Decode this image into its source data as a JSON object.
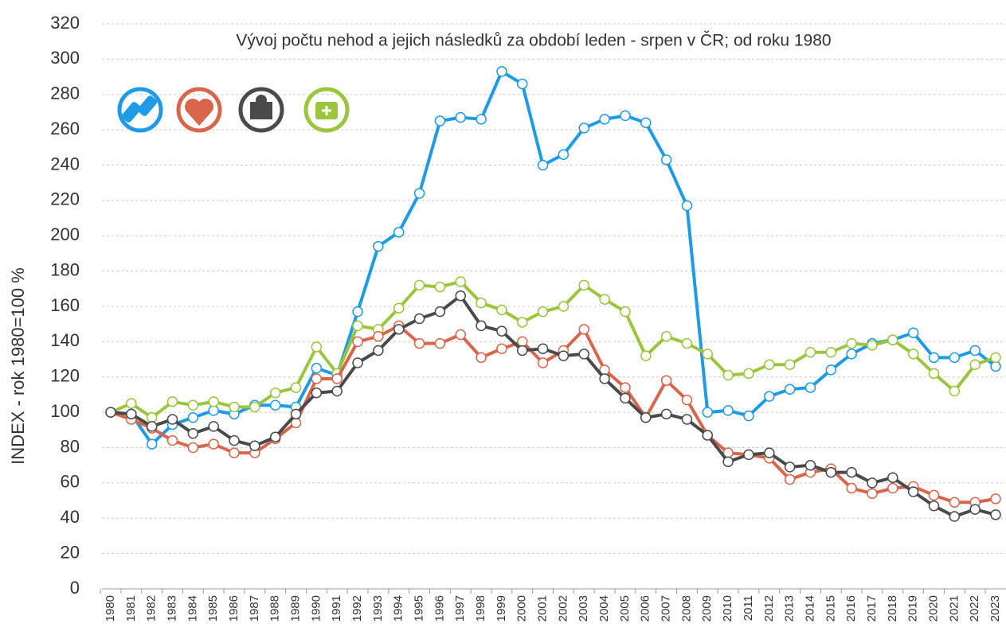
{
  "chart_data": {
    "type": "line",
    "title": "Vývoj počtu nehod a jejich následků za období leden - srpen v ČR; od roku 1980",
    "y_label": "INDEX - rok 1980=100 %",
    "categories": [
      "1980",
      "1981",
      "1982",
      "1983",
      "1984",
      "1985",
      "1986",
      "1987",
      "1988",
      "1989",
      "1990",
      "1991",
      "1992",
      "1993",
      "1994",
      "1995",
      "1996",
      "1997",
      "1998",
      "1999",
      "2000",
      "2001",
      "2002",
      "2003",
      "2004",
      "2005",
      "2006",
      "2007",
      "2008",
      "2009",
      "2010",
      "2011",
      "2012",
      "2013",
      "2014",
      "2015",
      "2016",
      "2017",
      "2018",
      "2019",
      "2020",
      "2021",
      "2022",
      "2023"
    ],
    "series": [
      {
        "color": "#1e9be6",
        "values": [
          100,
          99,
          82,
          93,
          97,
          101,
          99,
          104,
          104,
          103,
          125,
          121,
          157,
          194,
          202,
          224,
          265,
          267,
          266,
          293,
          286,
          240,
          246,
          261,
          266,
          268,
          264,
          243,
          217,
          100,
          101,
          98,
          109,
          113,
          114,
          124,
          133,
          139,
          141,
          145,
          131,
          131,
          135,
          126
        ]
      },
      {
        "color": "#9bc53d",
        "values": [
          100,
          105,
          97,
          106,
          104,
          106,
          103,
          103,
          111,
          114,
          137,
          122,
          149,
          147,
          159,
          172,
          171,
          174,
          162,
          158,
          151,
          157,
          160,
          172,
          164,
          157,
          132,
          143,
          139,
          133,
          121,
          122,
          127,
          127,
          134,
          134,
          139,
          138,
          141,
          133,
          122,
          112,
          127,
          131
        ]
      },
      {
        "color": "#d9654b",
        "values": [
          100,
          96,
          91,
          84,
          80,
          82,
          77,
          77,
          85,
          94,
          119,
          119,
          140,
          143,
          149,
          139,
          139,
          144,
          131,
          136,
          140,
          128,
          135,
          147,
          124,
          114,
          97,
          118,
          107,
          87,
          77,
          76,
          74,
          62,
          66,
          68,
          57,
          54,
          57,
          58,
          53,
          49,
          49,
          51
        ]
      },
      {
        "color": "#4a4a4a",
        "values": [
          100,
          99,
          92,
          96,
          88,
          92,
          84,
          81,
          86,
          99,
          111,
          112,
          128,
          135,
          147,
          153,
          157,
          166,
          149,
          146,
          135,
          136,
          132,
          133,
          119,
          108,
          97,
          99,
          96,
          87,
          72,
          76,
          77,
          69,
          70,
          66,
          66,
          60,
          63,
          55,
          47,
          41,
          45,
          42
        ]
      }
    ],
    "ylim": [
      0,
      320
    ],
    "yticks": [
      0,
      20,
      40,
      60,
      80,
      100,
      120,
      140,
      160,
      180,
      200,
      220,
      240,
      260,
      280,
      300,
      320
    ],
    "grid": true
  }
}
